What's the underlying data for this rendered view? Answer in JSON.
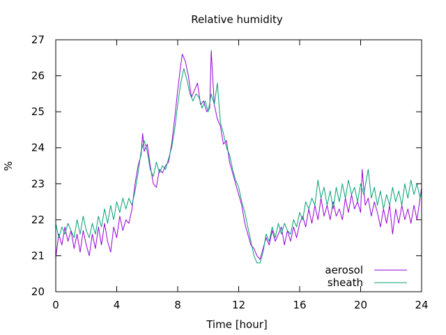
{
  "chart_data": {
    "type": "line",
    "title": "Relative humidity",
    "xlabel": "Time [hour]",
    "ylabel": "%",
    "xlim": [
      0,
      24
    ],
    "ylim": [
      20,
      27
    ],
    "xticks": [
      0,
      4,
      8,
      12,
      16,
      20,
      24
    ],
    "yticks": [
      20,
      21,
      22,
      23,
      24,
      25,
      26,
      27
    ],
    "grid": false,
    "legend_position": "bottom-right",
    "series": [
      {
        "name": "aerosol",
        "color": "#9400d3",
        "points": [
          [
            0.0,
            20.95
          ],
          [
            0.2,
            21.6
          ],
          [
            0.4,
            21.3
          ],
          [
            0.6,
            21.8
          ],
          [
            0.8,
            21.4
          ],
          [
            1.0,
            21.7
          ],
          [
            1.2,
            21.2
          ],
          [
            1.4,
            21.6
          ],
          [
            1.6,
            21.1
          ],
          [
            1.8,
            21.7
          ],
          [
            2.0,
            21.3
          ],
          [
            2.2,
            21.0
          ],
          [
            2.4,
            21.6
          ],
          [
            2.6,
            21.2
          ],
          [
            2.8,
            21.8
          ],
          [
            3.0,
            21.3
          ],
          [
            3.2,
            21.9
          ],
          [
            3.4,
            21.4
          ],
          [
            3.6,
            21.1
          ],
          [
            3.8,
            21.8
          ],
          [
            4.0,
            21.5
          ],
          [
            4.2,
            22.1
          ],
          [
            4.4,
            21.7
          ],
          [
            4.6,
            22.0
          ],
          [
            4.8,
            21.9
          ],
          [
            5.0,
            22.3
          ],
          [
            5.2,
            23.0
          ],
          [
            5.4,
            23.5
          ],
          [
            5.6,
            23.8
          ],
          [
            5.7,
            24.4
          ],
          [
            5.8,
            23.9
          ],
          [
            6.0,
            24.1
          ],
          [
            6.2,
            23.5
          ],
          [
            6.4,
            23.0
          ],
          [
            6.6,
            22.9
          ],
          [
            6.8,
            23.4
          ],
          [
            7.0,
            23.3
          ],
          [
            7.2,
            23.5
          ],
          [
            7.4,
            23.6
          ],
          [
            7.6,
            24.1
          ],
          [
            7.8,
            24.8
          ],
          [
            8.0,
            25.6
          ],
          [
            8.2,
            26.3
          ],
          [
            8.3,
            26.6
          ],
          [
            8.5,
            26.4
          ],
          [
            8.7,
            26.0
          ],
          [
            8.9,
            25.4
          ],
          [
            9.1,
            25.6
          ],
          [
            9.3,
            25.8
          ],
          [
            9.5,
            25.2
          ],
          [
            9.7,
            25.3
          ],
          [
            9.9,
            25.0
          ],
          [
            10.1,
            25.1
          ],
          [
            10.2,
            26.7
          ],
          [
            10.4,
            25.2
          ],
          [
            10.6,
            24.8
          ],
          [
            10.8,
            24.6
          ],
          [
            11.0,
            24.1
          ],
          [
            11.2,
            24.2
          ],
          [
            11.4,
            23.6
          ],
          [
            11.6,
            23.3
          ],
          [
            11.8,
            23.0
          ],
          [
            12.0,
            22.7
          ],
          [
            12.2,
            22.4
          ],
          [
            12.4,
            21.9
          ],
          [
            12.6,
            21.6
          ],
          [
            12.8,
            21.3
          ],
          [
            13.0,
            21.2
          ],
          [
            13.2,
            21.0
          ],
          [
            13.4,
            20.9
          ],
          [
            13.6,
            21.2
          ],
          [
            13.8,
            21.5
          ],
          [
            14.0,
            21.3
          ],
          [
            14.2,
            21.7
          ],
          [
            14.4,
            21.4
          ],
          [
            14.6,
            21.6
          ],
          [
            14.8,
            21.8
          ],
          [
            15.0,
            21.3
          ],
          [
            15.2,
            21.7
          ],
          [
            15.4,
            21.4
          ],
          [
            15.6,
            21.8
          ],
          [
            15.8,
            21.5
          ],
          [
            16.0,
            21.9
          ],
          [
            16.2,
            22.1
          ],
          [
            16.4,
            21.8
          ],
          [
            16.6,
            22.3
          ],
          [
            16.8,
            21.9
          ],
          [
            17.0,
            22.4
          ],
          [
            17.2,
            22.0
          ],
          [
            17.4,
            22.6
          ],
          [
            17.6,
            22.1
          ],
          [
            17.8,
            22.4
          ],
          [
            18.0,
            22.0
          ],
          [
            18.2,
            22.5
          ],
          [
            18.4,
            22.1
          ],
          [
            18.6,
            22.3
          ],
          [
            18.8,
            22.0
          ],
          [
            19.0,
            22.6
          ],
          [
            19.2,
            22.2
          ],
          [
            19.4,
            22.7
          ],
          [
            19.6,
            22.3
          ],
          [
            19.8,
            22.5
          ],
          [
            20.0,
            22.2
          ],
          [
            20.1,
            23.4
          ],
          [
            20.3,
            22.4
          ],
          [
            20.5,
            22.6
          ],
          [
            20.7,
            22.1
          ],
          [
            20.9,
            22.5
          ],
          [
            21.1,
            22.2
          ],
          [
            21.3,
            21.8
          ],
          [
            21.5,
            22.3
          ],
          [
            21.7,
            21.9
          ],
          [
            21.9,
            22.4
          ],
          [
            22.1,
            21.6
          ],
          [
            22.3,
            22.3
          ],
          [
            22.5,
            21.9
          ],
          [
            22.7,
            22.4
          ],
          [
            22.9,
            22.0
          ],
          [
            23.1,
            22.3
          ],
          [
            23.3,
            21.9
          ],
          [
            23.5,
            22.4
          ],
          [
            23.7,
            22.0
          ],
          [
            23.9,
            22.6
          ],
          [
            24.0,
            22.9
          ]
        ]
      },
      {
        "name": "sheath",
        "color": "#009e73",
        "points": [
          [
            0.0,
            21.9
          ],
          [
            0.2,
            21.5
          ],
          [
            0.4,
            21.8
          ],
          [
            0.6,
            21.6
          ],
          [
            0.8,
            21.9
          ],
          [
            1.0,
            21.7
          ],
          [
            1.2,
            21.5
          ],
          [
            1.4,
            22.0
          ],
          [
            1.6,
            21.6
          ],
          [
            1.8,
            22.1
          ],
          [
            2.0,
            21.7
          ],
          [
            2.2,
            21.5
          ],
          [
            2.4,
            21.9
          ],
          [
            2.6,
            21.6
          ],
          [
            2.8,
            22.1
          ],
          [
            3.0,
            21.8
          ],
          [
            3.2,
            22.3
          ],
          [
            3.4,
            21.9
          ],
          [
            3.6,
            22.4
          ],
          [
            3.8,
            22.0
          ],
          [
            4.0,
            22.5
          ],
          [
            4.2,
            22.2
          ],
          [
            4.4,
            22.6
          ],
          [
            4.6,
            22.3
          ],
          [
            4.8,
            22.6
          ],
          [
            5.0,
            22.4
          ],
          [
            5.2,
            22.8
          ],
          [
            5.4,
            23.3
          ],
          [
            5.6,
            23.9
          ],
          [
            5.8,
            24.2
          ],
          [
            6.0,
            23.9
          ],
          [
            6.2,
            23.4
          ],
          [
            6.4,
            23.2
          ],
          [
            6.6,
            23.6
          ],
          [
            6.8,
            23.3
          ],
          [
            7.0,
            23.5
          ],
          [
            7.2,
            23.4
          ],
          [
            7.4,
            23.7
          ],
          [
            7.6,
            24.0
          ],
          [
            7.8,
            24.5
          ],
          [
            8.0,
            25.2
          ],
          [
            8.2,
            25.8
          ],
          [
            8.4,
            26.2
          ],
          [
            8.6,
            25.9
          ],
          [
            8.8,
            25.5
          ],
          [
            9.0,
            25.3
          ],
          [
            9.2,
            25.5
          ],
          [
            9.4,
            25.4
          ],
          [
            9.6,
            25.1
          ],
          [
            9.8,
            25.3
          ],
          [
            10.0,
            25.0
          ],
          [
            10.2,
            25.5
          ],
          [
            10.4,
            25.2
          ],
          [
            10.6,
            25.8
          ],
          [
            10.8,
            24.7
          ],
          [
            11.0,
            24.4
          ],
          [
            11.2,
            24.0
          ],
          [
            11.4,
            23.8
          ],
          [
            11.6,
            23.4
          ],
          [
            11.8,
            23.1
          ],
          [
            12.0,
            22.9
          ],
          [
            12.2,
            22.5
          ],
          [
            12.4,
            22.2
          ],
          [
            12.6,
            21.8
          ],
          [
            12.8,
            21.4
          ],
          [
            13.0,
            21.0
          ],
          [
            13.2,
            20.8
          ],
          [
            13.4,
            20.8
          ],
          [
            13.6,
            21.1
          ],
          [
            13.8,
            21.6
          ],
          [
            14.0,
            21.4
          ],
          [
            14.2,
            21.8
          ],
          [
            14.4,
            21.5
          ],
          [
            14.6,
            21.9
          ],
          [
            14.8,
            21.6
          ],
          [
            15.0,
            21.9
          ],
          [
            15.2,
            21.7
          ],
          [
            15.4,
            21.6
          ],
          [
            15.6,
            22.0
          ],
          [
            15.8,
            21.8
          ],
          [
            16.0,
            22.2
          ],
          [
            16.2,
            22.0
          ],
          [
            16.4,
            22.5
          ],
          [
            16.6,
            22.3
          ],
          [
            16.8,
            22.6
          ],
          [
            17.0,
            22.4
          ],
          [
            17.2,
            23.1
          ],
          [
            17.4,
            22.6
          ],
          [
            17.6,
            22.9
          ],
          [
            17.8,
            22.4
          ],
          [
            18.0,
            22.8
          ],
          [
            18.2,
            22.3
          ],
          [
            18.4,
            22.9
          ],
          [
            18.6,
            22.5
          ],
          [
            18.8,
            23.0
          ],
          [
            19.0,
            22.6
          ],
          [
            19.2,
            23.1
          ],
          [
            19.4,
            22.7
          ],
          [
            19.6,
            22.9
          ],
          [
            19.8,
            22.5
          ],
          [
            20.0,
            23.0
          ],
          [
            20.2,
            22.7
          ],
          [
            20.5,
            23.4
          ],
          [
            20.7,
            22.6
          ],
          [
            20.9,
            22.9
          ],
          [
            21.1,
            22.4
          ],
          [
            21.3,
            22.8
          ],
          [
            21.5,
            22.3
          ],
          [
            21.7,
            22.7
          ],
          [
            21.9,
            22.4
          ],
          [
            22.1,
            22.9
          ],
          [
            22.3,
            22.5
          ],
          [
            22.5,
            22.8
          ],
          [
            22.7,
            22.4
          ],
          [
            22.9,
            23.0
          ],
          [
            23.1,
            22.6
          ],
          [
            23.3,
            23.1
          ],
          [
            23.5,
            22.7
          ],
          [
            23.7,
            23.0
          ],
          [
            23.9,
            22.6
          ],
          [
            24.0,
            22.8
          ]
        ]
      }
    ]
  }
}
